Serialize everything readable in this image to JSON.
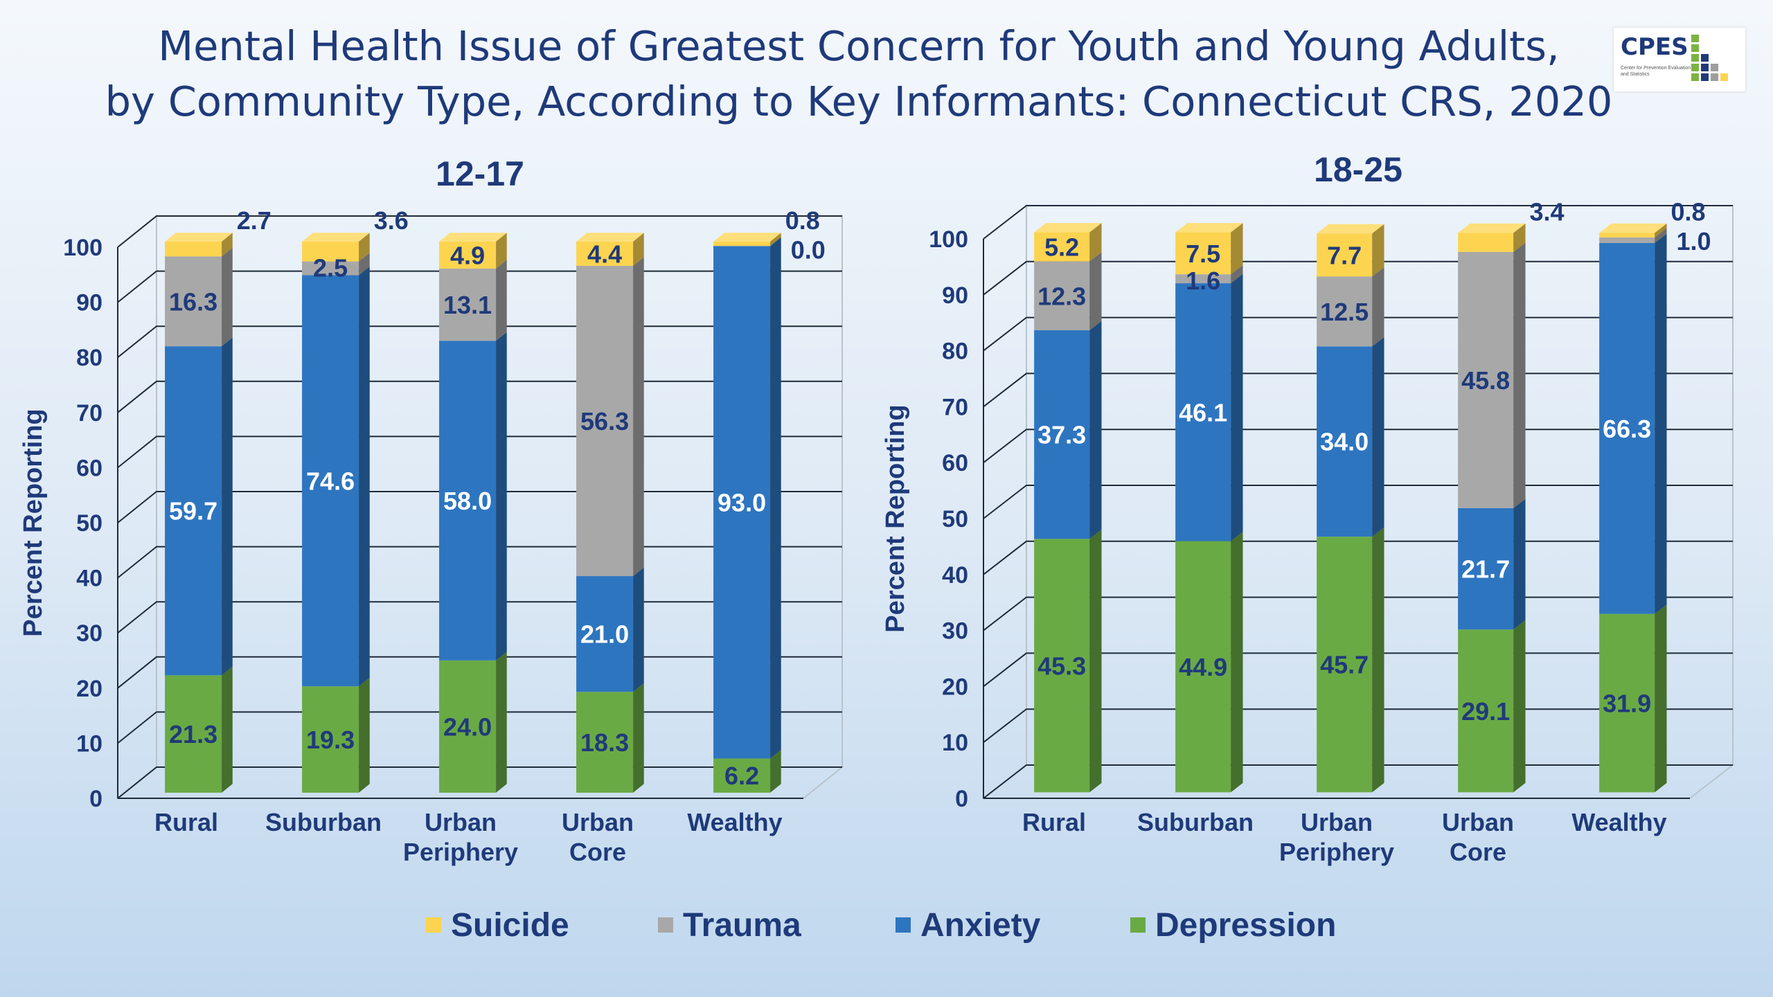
{
  "title_line1": "Mental Health Issue of Greatest Concern for Youth and Young Adults,",
  "title_line2": "by Community Type, According to Key Informants: Connecticut CRS, 2020",
  "logo": {
    "text": "CPES",
    "subtext": "Center for Prevention Evaluation and Statistics"
  },
  "colors": {
    "Suicide": "#fcd44f",
    "Trauma": "#a8a8a8",
    "Anxiety": "#2e75c0",
    "Depression": "#6aaa45"
  },
  "legend": [
    "Suicide",
    "Trauma",
    "Anxiety",
    "Depression"
  ],
  "chart_data": [
    {
      "type": "bar",
      "stacked": true,
      "title": "12-17",
      "ylabel": "Percent Reporting",
      "ylim": [
        0,
        100
      ],
      "yticks": [
        "0",
        "10",
        "20",
        "30",
        "40",
        "50",
        "60",
        "70",
        "80",
        "90",
        "100"
      ],
      "grid": true,
      "categories": [
        [
          "Rural"
        ],
        [
          "Suburban"
        ],
        [
          "Urban",
          "Periphery"
        ],
        [
          "Urban",
          "Core"
        ],
        [
          "Wealthy"
        ]
      ],
      "series": [
        {
          "name": "Depression",
          "values": [
            21.3,
            19.3,
            24.0,
            18.3,
            6.2
          ],
          "labels": [
            "21.3",
            "19.3",
            "24.0",
            "18.3",
            "6.2"
          ]
        },
        {
          "name": "Anxiety",
          "values": [
            59.7,
            74.6,
            58.0,
            21.0,
            93.0
          ],
          "labels": [
            "59.7",
            "74.6",
            "58.0",
            "21.0",
            "93.0"
          ]
        },
        {
          "name": "Trauma",
          "values": [
            16.3,
            2.5,
            13.1,
            56.3,
            0.0
          ],
          "labels": [
            "16.3",
            "2.5",
            "13.1",
            "56.3",
            "0.0"
          ]
        },
        {
          "name": "Suicide",
          "values": [
            2.7,
            3.6,
            4.9,
            4.4,
            0.8
          ],
          "labels": [
            "2.7",
            "3.6",
            "4.9",
            "4.4",
            "0.8"
          ]
        }
      ]
    },
    {
      "type": "bar",
      "stacked": true,
      "title": "18-25",
      "ylabel": "Percent Reporting",
      "ylim": [
        0,
        100
      ],
      "yticks": [
        "0",
        "10",
        "20",
        "30",
        "40",
        "50",
        "60",
        "70",
        "80",
        "90",
        "100"
      ],
      "grid": true,
      "categories": [
        [
          "Rural"
        ],
        [
          "Suburban"
        ],
        [
          "Urban",
          "Periphery"
        ],
        [
          "Urban",
          "Core"
        ],
        [
          "Wealthy"
        ]
      ],
      "series": [
        {
          "name": "Depression",
          "values": [
            45.3,
            44.9,
            45.7,
            29.1,
            31.9
          ],
          "labels": [
            "45.3",
            "44.9",
            "45.7",
            "29.1",
            "31.9"
          ]
        },
        {
          "name": "Anxiety",
          "values": [
            37.3,
            46.1,
            34.0,
            21.7,
            66.3
          ],
          "labels": [
            "37.3",
            "46.1",
            "34.0",
            "21.7",
            "66.3"
          ]
        },
        {
          "name": "Trauma",
          "values": [
            12.3,
            1.6,
            12.5,
            45.8,
            1.0
          ],
          "labels": [
            "12.3",
            "1.6",
            "12.5",
            "45.8",
            "1.0"
          ]
        },
        {
          "name": "Suicide",
          "values": [
            5.2,
            7.5,
            7.7,
            3.4,
            0.8
          ],
          "labels": [
            "5.2",
            "7.5",
            "7.7",
            "3.4",
            "0.8"
          ]
        }
      ]
    }
  ]
}
